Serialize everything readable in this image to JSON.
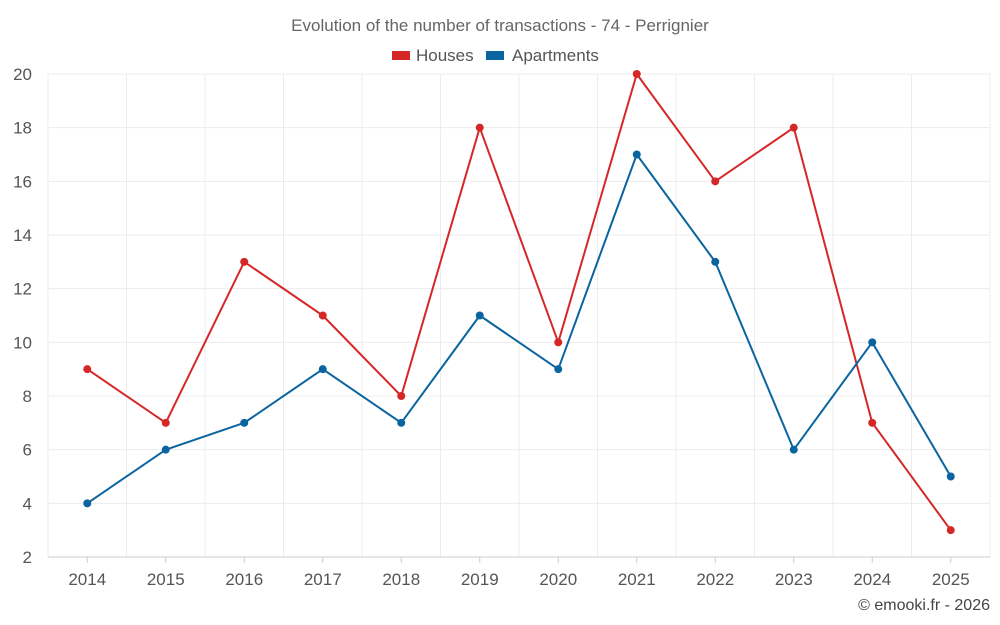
{
  "chart_data": {
    "type": "line",
    "title": "Evolution of the number of transactions - 74 - Perrignier",
    "categories": [
      "2014",
      "2015",
      "2016",
      "2017",
      "2018",
      "2019",
      "2020",
      "2021",
      "2022",
      "2023",
      "2024",
      "2025"
    ],
    "series": [
      {
        "name": "Houses",
        "color": "#d62728",
        "values": [
          9,
          7,
          13,
          11,
          8,
          18,
          10,
          20,
          16,
          18,
          7,
          3
        ]
      },
      {
        "name": "Apartments",
        "color": "#0a64a0",
        "values": [
          4,
          6,
          7,
          9,
          7,
          11,
          9,
          17,
          13,
          6,
          10,
          5
        ]
      }
    ],
    "xlabel": "",
    "ylabel": "",
    "ylim": [
      2,
      20
    ],
    "yticks": [
      "2",
      "4",
      "6",
      "8",
      "10",
      "12",
      "14",
      "16",
      "18",
      "20"
    ],
    "grid": true,
    "legend": "top-center"
  },
  "credit": "© emooki.fr - 2026"
}
